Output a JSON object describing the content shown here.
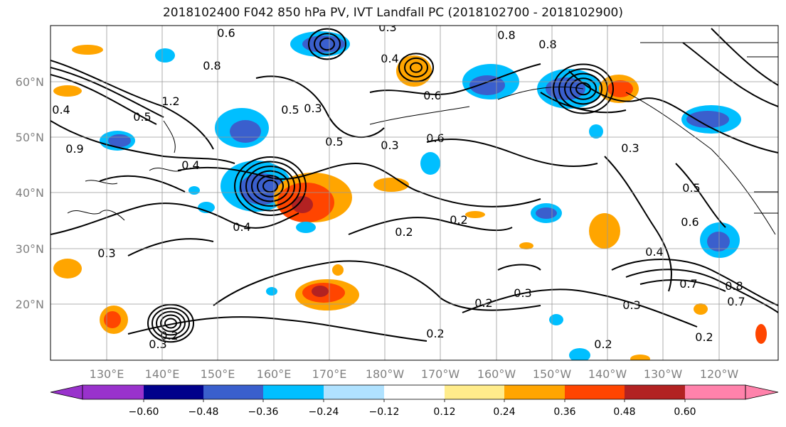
{
  "title": "2018102400 F042 850 hPa PV, IVT Landfall PC (2018102700 - 2018102900)",
  "lat_labels": [
    "20°N",
    "30°N",
    "40°N",
    "50°N",
    "60°N"
  ],
  "lon_labels": [
    "130°E",
    "140°E",
    "150°E",
    "160°E",
    "170°E",
    "180°W",
    "170°W",
    "160°W",
    "150°W",
    "140°W",
    "130°W",
    "120°W"
  ],
  "colorbar": {
    "colors": [
      "#9932cc",
      "#00008b",
      "#3a5fcd",
      "#00bfff",
      "#b0e2ff",
      "#ffffff",
      "#ffec8b",
      "#ffa500",
      "#ff4500",
      "#b22222",
      "#ff82ab"
    ],
    "tick_labels": [
      "−0.60",
      "−0.48",
      "−0.36",
      "−0.24",
      "−0.12",
      "0.12",
      "0.24",
      "0.36",
      "0.48",
      "0.60"
    ]
  },
  "contour_labels": [
    "0.6",
    "0.3",
    "0.8",
    "0.4",
    "0.2",
    "0.5",
    "0.7",
    "1.2",
    "0.9"
  ],
  "fill_colors": {
    "neg_light": "#00bfff",
    "neg_mid": "#3a5fcd",
    "neg_pale": "#b0e2ff",
    "pos_light": "#ffec8b",
    "pos_mid": "#ffa500",
    "pos_strong": "#ff4500",
    "pos_dark": "#b22222"
  }
}
